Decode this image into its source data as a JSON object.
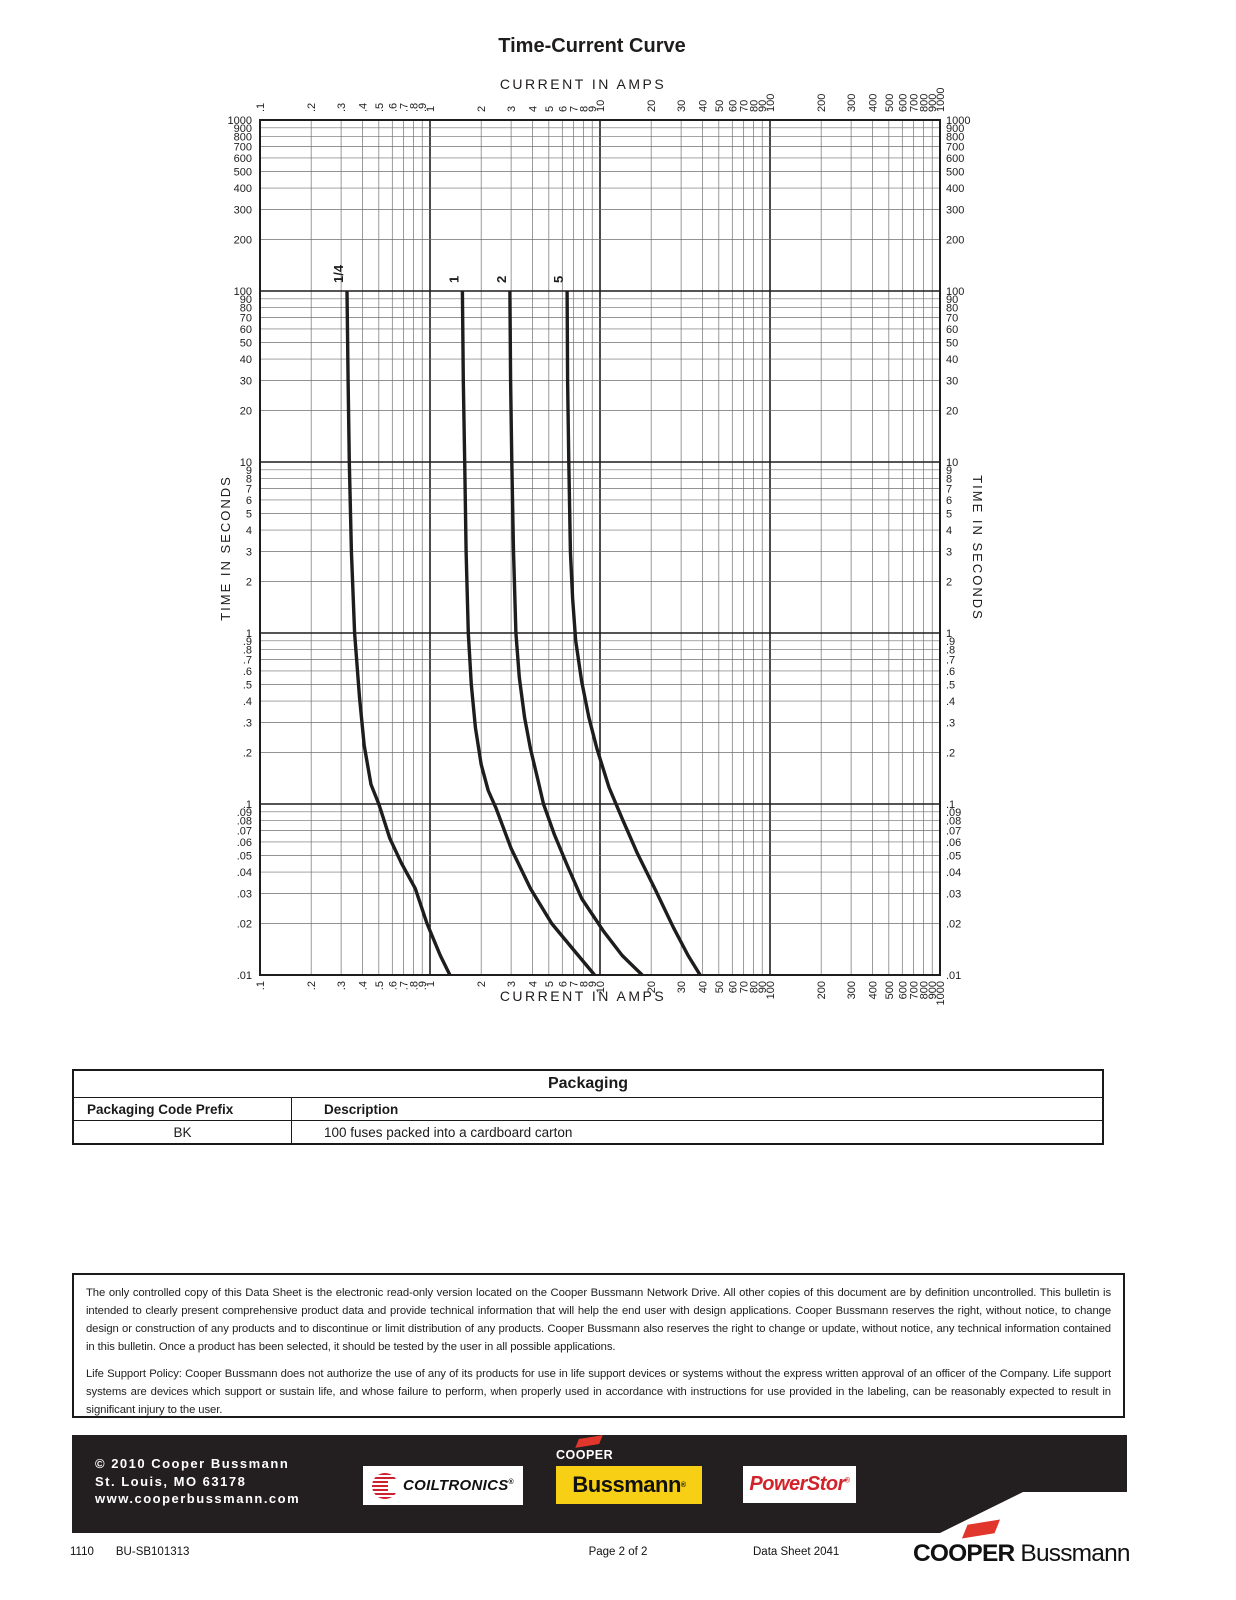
{
  "chart": {
    "title": "Time-Current Curve",
    "top_axis_title": "CURRENT IN AMPS",
    "bottom_axis_title": "CURRENT IN AMPS",
    "left_axis_title": "TIME IN SECONDS",
    "right_axis_title": "TIME IN SECONDS"
  },
  "chart_data": {
    "type": "line",
    "title": "Time-Current Curve",
    "xlabel": "CURRENT IN AMPS",
    "ylabel": "TIME IN SECONDS",
    "x_scale": "log",
    "y_scale": "log",
    "xlim": [
      0.1,
      1000
    ],
    "ylim": [
      0.01,
      1000
    ],
    "grid": true,
    "x_tick_labels": [
      ".1",
      ".2",
      ".3",
      ".4",
      ".5",
      ".6",
      ".7",
      ".8",
      ".9",
      "1",
      "2",
      "3",
      "4",
      "5",
      "6",
      "7",
      "8",
      "9",
      "10",
      "20",
      "30",
      "40",
      "50",
      "60",
      "70",
      "80",
      "90",
      "100",
      "200",
      "300",
      "400",
      "500",
      "600",
      "700",
      "800",
      "900",
      "1000"
    ],
    "y_tick_labels": [
      "1000",
      "900",
      "800",
      "700",
      "600",
      "500",
      "400",
      "300",
      "200",
      "100",
      "90",
      "80",
      "70",
      "60",
      "50",
      "40",
      "30",
      "20",
      "10",
      "9",
      "8",
      "7",
      "6",
      "5",
      "4",
      "3",
      "2",
      "1",
      ".9",
      ".8",
      ".7",
      ".6",
      ".5",
      ".4",
      ".3",
      ".2",
      ".1",
      ".09",
      ".08",
      ".07",
      ".06",
      ".05",
      ".04",
      ".03",
      ".02",
      ".01"
    ],
    "series": [
      {
        "name": "1/4",
        "points": [
          [
            0.325,
            100
          ],
          [
            0.33,
            30
          ],
          [
            0.335,
            10
          ],
          [
            0.345,
            3
          ],
          [
            0.36,
            1
          ],
          [
            0.385,
            0.42
          ],
          [
            0.41,
            0.22
          ],
          [
            0.45,
            0.13
          ],
          [
            0.5,
            0.1
          ],
          [
            0.58,
            0.063
          ],
          [
            0.68,
            0.045
          ],
          [
            0.82,
            0.032
          ],
          [
            0.96,
            0.02
          ],
          [
            1.15,
            0.013
          ],
          [
            1.31,
            0.01
          ]
        ]
      },
      {
        "name": "1",
        "points": [
          [
            1.55,
            100
          ],
          [
            1.57,
            30
          ],
          [
            1.6,
            10
          ],
          [
            1.63,
            3
          ],
          [
            1.68,
            1
          ],
          [
            1.75,
            0.5
          ],
          [
            1.85,
            0.28
          ],
          [
            2.0,
            0.17
          ],
          [
            2.2,
            0.12
          ],
          [
            2.45,
            0.094
          ],
          [
            3.0,
            0.055
          ],
          [
            3.9,
            0.032
          ],
          [
            5.2,
            0.02
          ],
          [
            7.0,
            0.014
          ],
          [
            9.3,
            0.01
          ]
        ]
      },
      {
        "name": "2",
        "points": [
          [
            2.95,
            100
          ],
          [
            2.98,
            30
          ],
          [
            3.03,
            10
          ],
          [
            3.1,
            3
          ],
          [
            3.2,
            1
          ],
          [
            3.35,
            0.55
          ],
          [
            3.6,
            0.32
          ],
          [
            3.9,
            0.21
          ],
          [
            4.3,
            0.14
          ],
          [
            4.65,
            0.1
          ],
          [
            5.4,
            0.066
          ],
          [
            6.4,
            0.044
          ],
          [
            7.8,
            0.028
          ],
          [
            10.5,
            0.018
          ],
          [
            13.5,
            0.013
          ],
          [
            17.7,
            0.01
          ]
        ]
      },
      {
        "name": "5",
        "points": [
          [
            6.4,
            100
          ],
          [
            6.45,
            30
          ],
          [
            6.55,
            10
          ],
          [
            6.7,
            3
          ],
          [
            6.9,
            1.6
          ],
          [
            7.2,
            0.9
          ],
          [
            7.8,
            0.52
          ],
          [
            8.6,
            0.32
          ],
          [
            9.6,
            0.21
          ],
          [
            11.3,
            0.125
          ],
          [
            13.5,
            0.082
          ],
          [
            16.5,
            0.052
          ],
          [
            21,
            0.032
          ],
          [
            27,
            0.019
          ],
          [
            33,
            0.013
          ],
          [
            38.8,
            0.01
          ]
        ]
      }
    ]
  },
  "packaging_table": {
    "title": "Packaging",
    "headers": [
      "Packaging Code Prefix",
      "Description"
    ],
    "rows": [
      [
        "BK",
        "100 fuses packed into a cardboard carton"
      ]
    ]
  },
  "disclaimer": {
    "p1": "The only controlled copy of this Data Sheet is the electronic read-only version located on the Cooper Bussmann Network Drive. All other copies of this document are by definition uncontrolled. This bulletin is intended to clearly present comprehensive product data and provide technical information that will help the end user with design applications. Cooper Bussmann reserves the right, without notice, to change design or construction of any products and to discontinue or limit distribution of any products. Cooper Bussmann also reserves the right to change or update, without notice, any technical information contained in this bulletin. Once a product has been selected, it should be tested by the user in all possible applications.",
    "p2": "Life Support Policy: Cooper Bussmann does not authorize the use of any of its products for use in life support devices or systems without the express written approval of an officer of the Company. Life support systems are devices which support or sustain life, and whose failure to perform, when properly used in accordance with instructions for use provided in the labeling, can be reasonably expected to result in significant injury to the user."
  },
  "footer_bar": {
    "line1": "© 2010 Cooper Bussmann",
    "line2": "St. Louis, MO 63178",
    "line3": "www.cooperbussmann.com",
    "coiltronics_label": "COILTRONICS",
    "cooper_label": "COOPER",
    "bussmann_label": "Bussmann",
    "powerstor_label": "PowerStor",
    "reg_mark": "®"
  },
  "footer": {
    "code1": "1110",
    "code2": "BU-SB101313",
    "page": "Page 2 of 2",
    "sheet": "Data Sheet 2041",
    "brand_bold": "COOPER",
    "brand_regular": "Bussmann"
  },
  "colors": {
    "curve": "#1f1c1c",
    "grid_minor": "#6f6f6f",
    "grid_major": "#1f1c1c",
    "bar_black": "#231f20",
    "bussmann_yellow": "#f7d016",
    "logo_red": "#e0362c",
    "coiltronics_red": "#cf2030",
    "powerstor_red": "#d2232a"
  }
}
